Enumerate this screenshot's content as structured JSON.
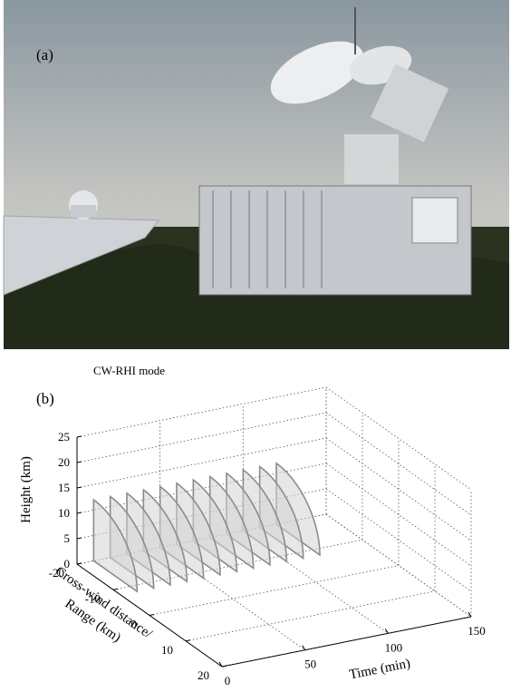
{
  "panel_a": {
    "label": "(a)"
  },
  "chart_data": {
    "type": "rhi-3d",
    "title": "CW-RHI mode",
    "panel_label": "(b)",
    "x_label": "Time (min)",
    "y_label": [
      "Cross-wind distance/",
      "Range (km)"
    ],
    "z_label": "Height (km)",
    "xlim": [
      0,
      150
    ],
    "xticks": [
      0,
      50,
      100,
      150
    ],
    "ylim": [
      -20,
      20
    ],
    "yticks": [
      -20,
      -10,
      0,
      10,
      20
    ],
    "zlim": [
      0,
      25
    ],
    "zticks": [
      0,
      5,
      10,
      15,
      20,
      25
    ],
    "x": [
      10,
      20,
      30,
      40,
      50,
      60,
      70,
      80,
      90,
      100,
      110,
      120
    ],
    "values": [
      12,
      12,
      12,
      12,
      12,
      12,
      12,
      12,
      12,
      12,
      12,
      12
    ],
    "grid": true,
    "color": "#d4d4d4"
  }
}
